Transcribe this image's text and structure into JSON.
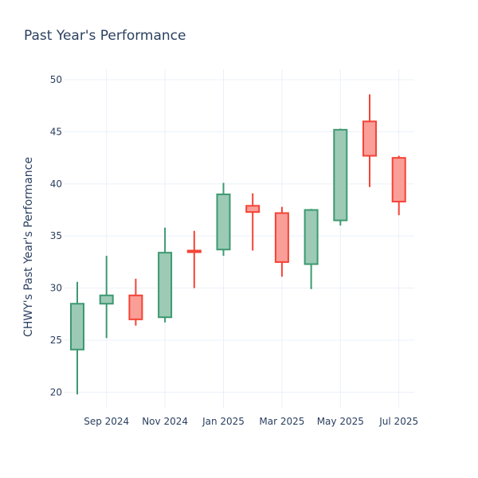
{
  "chart_data": {
    "type": "candlestick",
    "title": "Past Year's Performance",
    "ylabel": "CHWY's Past Year's Performance",
    "xlabel": "",
    "ylim": [
      18.5,
      51
    ],
    "yticks": [
      20,
      25,
      30,
      35,
      40,
      45,
      50
    ],
    "x_tick_labels": [
      "Sep 2024",
      "Nov 2024",
      "Jan 2025",
      "Mar 2025",
      "May 2025",
      "Jul 2025"
    ],
    "grid": true,
    "colors": {
      "increasing_line": "#3d9970",
      "increasing_fill": "#9ccab5",
      "decreasing_line": "#f44336",
      "decreasing_fill": "#fa9e98",
      "text": "#2a3f5f",
      "grid": "#ebf0f8"
    },
    "candles": [
      {
        "date": "Aug 2024",
        "open": 24.1,
        "high": 30.6,
        "low": 19.8,
        "close": 28.5
      },
      {
        "date": "Sep 2024",
        "open": 28.5,
        "high": 33.1,
        "low": 25.2,
        "close": 29.3
      },
      {
        "date": "Oct 2024",
        "open": 29.3,
        "high": 30.9,
        "low": 26.4,
        "close": 27.0
      },
      {
        "date": "Nov 2024",
        "open": 27.2,
        "high": 35.8,
        "low": 26.7,
        "close": 33.4
      },
      {
        "date": "Dec 2024",
        "open": 33.6,
        "high": 35.5,
        "low": 30.0,
        "close": 33.5
      },
      {
        "date": "Jan 2025",
        "open": 33.7,
        "high": 40.1,
        "low": 33.1,
        "close": 39.0
      },
      {
        "date": "Feb 2025",
        "open": 37.9,
        "high": 39.1,
        "low": 33.6,
        "close": 37.3
      },
      {
        "date": "Mar 2025",
        "open": 37.2,
        "high": 37.8,
        "low": 31.1,
        "close": 32.5
      },
      {
        "date": "Apr 2025",
        "open": 32.3,
        "high": 37.6,
        "low": 29.9,
        "close": 37.5
      },
      {
        "date": "May 2025",
        "open": 36.5,
        "high": 45.3,
        "low": 36.0,
        "close": 45.2
      },
      {
        "date": "Jun 2025",
        "open": 46.0,
        "high": 48.6,
        "low": 39.7,
        "close": 42.7
      },
      {
        "date": "Jul 2025",
        "open": 42.5,
        "high": 42.7,
        "low": 37.0,
        "close": 38.3
      }
    ]
  }
}
